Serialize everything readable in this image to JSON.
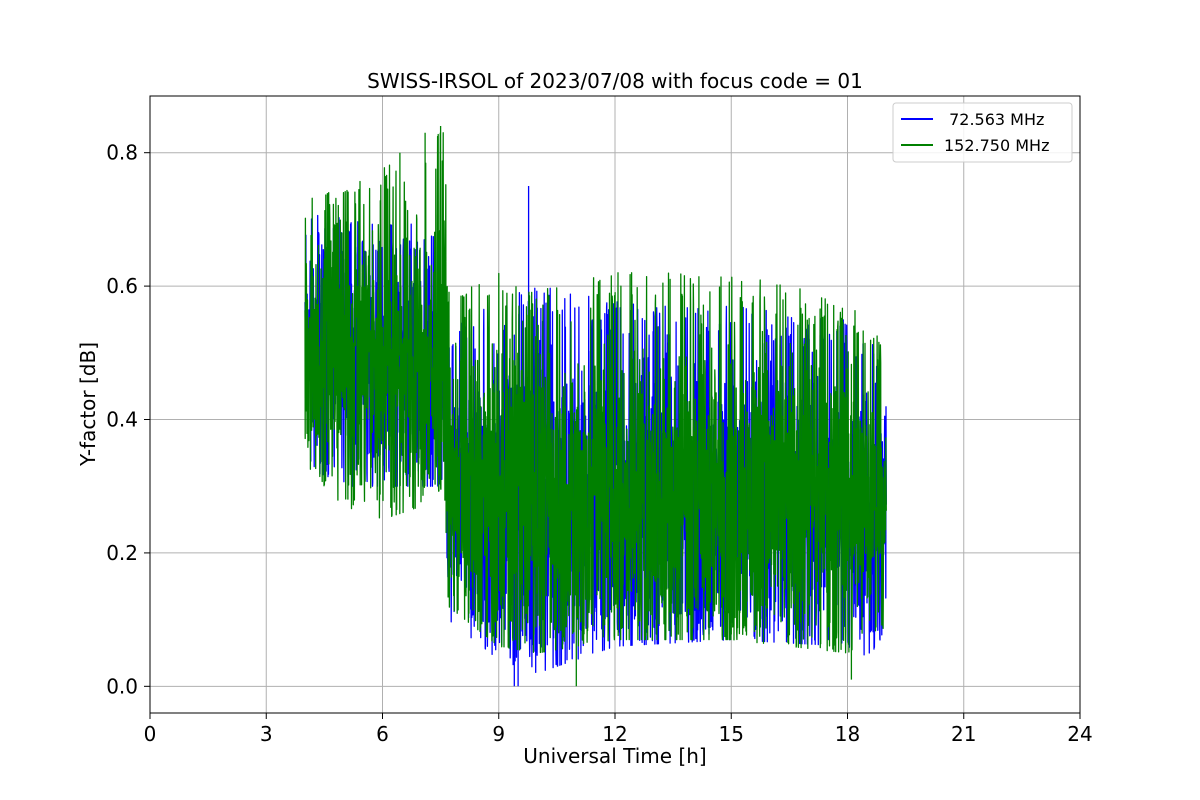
{
  "chart_data": {
    "type": "line",
    "title": "SWISS-IRSOL of 2023/07/08 with focus code = 01",
    "xlabel": "Universal Time [h]",
    "ylabel": "Y-factor [dB]",
    "xlim": [
      0,
      24
    ],
    "ylim": [
      -0.04,
      0.885
    ],
    "xticks": [
      0,
      3,
      6,
      9,
      12,
      15,
      18,
      21,
      24
    ],
    "xtick_labels": [
      "0",
      "3",
      "6",
      "9",
      "12",
      "15",
      "18",
      "21",
      "24"
    ],
    "yticks": [
      0.0,
      0.2,
      0.4,
      0.6,
      0.8
    ],
    "ytick_labels": [
      "0.0",
      "0.2",
      "0.4",
      "0.6",
      "0.8"
    ],
    "grid": true,
    "legend_position": "top-right",
    "x_range": [
      4.0,
      19.0
    ],
    "series": [
      {
        "name": " 72.563 MHz",
        "color": "#0000ff",
        "envelope": [
          {
            "x": 4.0,
            "low": 0.33,
            "high": 0.72,
            "mean": 0.5
          },
          {
            "x": 5.0,
            "low": 0.3,
            "high": 0.7,
            "mean": 0.5
          },
          {
            "x": 6.0,
            "low": 0.3,
            "high": 0.69,
            "mean": 0.49
          },
          {
            "x": 7.0,
            "low": 0.3,
            "high": 0.7,
            "mean": 0.48
          },
          {
            "x": 7.6,
            "low": 0.3,
            "high": 0.65,
            "mean": 0.46
          },
          {
            "x": 7.7,
            "low": 0.1,
            "high": 0.55,
            "mean": 0.29
          },
          {
            "x": 9.0,
            "low": 0.04,
            "high": 0.58,
            "mean": 0.27
          },
          {
            "x": 10.0,
            "low": 0.02,
            "high": 0.6,
            "mean": 0.27
          },
          {
            "x": 12.0,
            "low": 0.06,
            "high": 0.58,
            "mean": 0.27
          },
          {
            "x": 15.0,
            "low": 0.07,
            "high": 0.57,
            "mean": 0.27
          },
          {
            "x": 18.0,
            "low": 0.06,
            "high": 0.55,
            "mean": 0.26
          },
          {
            "x": 19.0,
            "low": 0.03,
            "high": 0.5,
            "mean": 0.25
          }
        ],
        "spikes": [
          {
            "x": 9.77,
            "y": 0.75
          },
          {
            "x": 9.5,
            "y": 0.0
          },
          {
            "x": 9.4,
            "y": 0.0
          }
        ]
      },
      {
        "name": "152.750 MHz",
        "color": "#008000",
        "envelope": [
          {
            "x": 4.0,
            "low": 0.33,
            "high": 0.74,
            "mean": 0.5
          },
          {
            "x": 5.0,
            "low": 0.27,
            "high": 0.74,
            "mean": 0.5
          },
          {
            "x": 6.0,
            "low": 0.25,
            "high": 0.78,
            "mean": 0.5
          },
          {
            "x": 7.0,
            "low": 0.27,
            "high": 0.8,
            "mean": 0.49
          },
          {
            "x": 7.6,
            "low": 0.3,
            "high": 0.84,
            "mean": 0.47
          },
          {
            "x": 7.7,
            "low": 0.12,
            "high": 0.6,
            "mean": 0.3
          },
          {
            "x": 9.0,
            "low": 0.06,
            "high": 0.62,
            "mean": 0.29
          },
          {
            "x": 10.0,
            "low": 0.05,
            "high": 0.6,
            "mean": 0.28
          },
          {
            "x": 12.0,
            "low": 0.07,
            "high": 0.62,
            "mean": 0.28
          },
          {
            "x": 15.0,
            "low": 0.07,
            "high": 0.62,
            "mean": 0.28
          },
          {
            "x": 18.0,
            "low": 0.05,
            "high": 0.58,
            "mean": 0.27
          },
          {
            "x": 19.0,
            "low": 0.09,
            "high": 0.51,
            "mean": 0.27
          }
        ],
        "spikes": [
          {
            "x": 7.5,
            "y": 0.84
          },
          {
            "x": 7.1,
            "y": 0.83
          },
          {
            "x": 6.45,
            "y": 0.8
          },
          {
            "x": 11.0,
            "y": 0.0
          },
          {
            "x": 18.1,
            "y": 0.01
          }
        ]
      }
    ]
  }
}
